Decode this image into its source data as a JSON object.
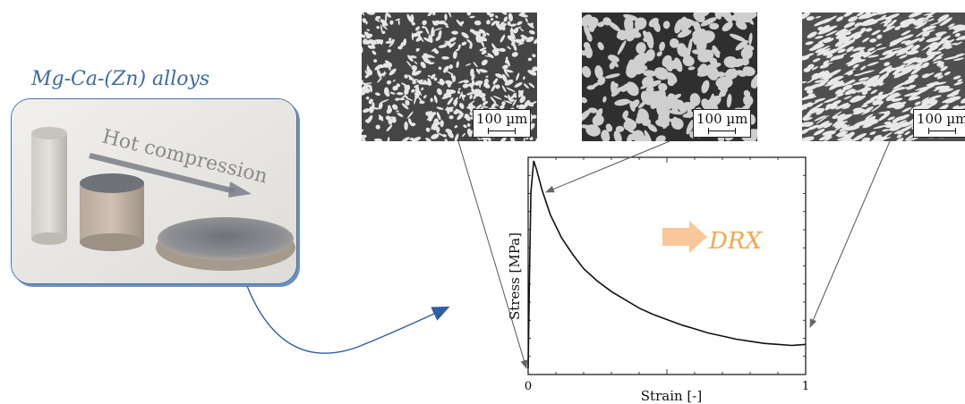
{
  "alloy_title": "Mg-Ca-(Zn) alloys",
  "photo_label": "Hot compression",
  "micrographs": [
    {
      "scale_label": "100 µm"
    },
    {
      "scale_label": "100 µm"
    },
    {
      "scale_label": "100 µm"
    }
  ],
  "drx_label": "DRX",
  "colors": {
    "title_blue": "#3b6aa6",
    "drx_orange": "#f5a64a"
  },
  "chart_data": {
    "type": "line",
    "title": "",
    "xlabel": "Strain [-]",
    "ylabel": "Stress [MPa]",
    "xlim": [
      0,
      1
    ],
    "x_ticks": [
      "0",
      "1"
    ],
    "series": [
      {
        "x": [
          0,
          0.005,
          0.01,
          0.02,
          0.03,
          0.05,
          0.08,
          0.12,
          0.16,
          0.2,
          0.25,
          0.3,
          0.35,
          0.4,
          0.45,
          0.5,
          0.55,
          0.6,
          0.65,
          0.7,
          0.75,
          0.8,
          0.85,
          0.9,
          0.95,
          1.0
        ],
        "y": [
          0.0,
          0.45,
          0.85,
          1.0,
          0.96,
          0.86,
          0.74,
          0.63,
          0.55,
          0.48,
          0.42,
          0.37,
          0.33,
          0.29,
          0.26,
          0.235,
          0.21,
          0.19,
          0.17,
          0.155,
          0.14,
          0.13,
          0.12,
          0.115,
          0.11,
          0.115
        ]
      }
    ]
  }
}
